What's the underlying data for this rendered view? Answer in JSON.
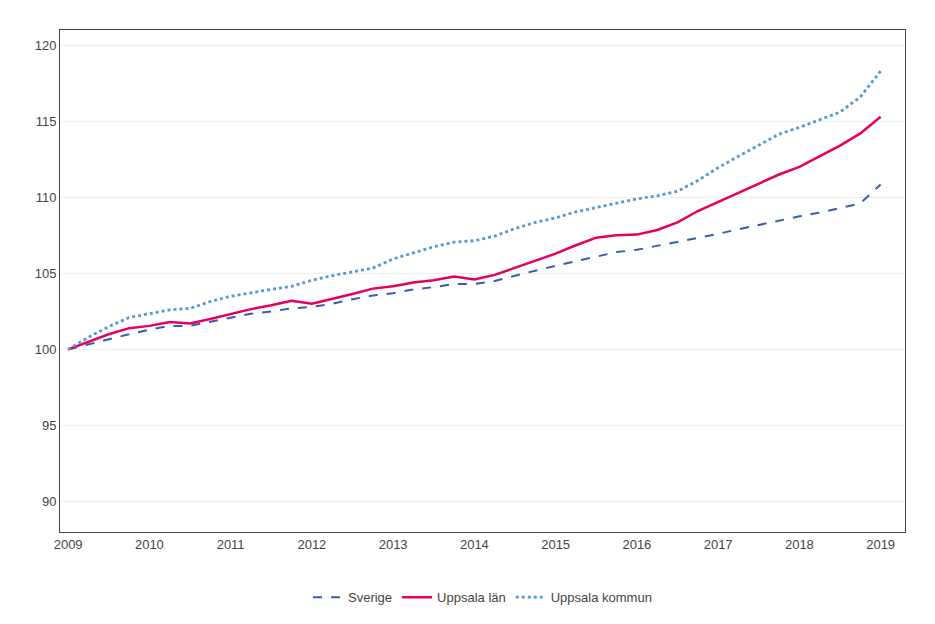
{
  "chart_data": {
    "type": "line",
    "x": [
      2009,
      2009.25,
      2009.5,
      2009.75,
      2010,
      2010.25,
      2010.5,
      2010.75,
      2011,
      2011.25,
      2011.5,
      2011.75,
      2012,
      2012.25,
      2012.5,
      2012.75,
      2013,
      2013.25,
      2013.5,
      2013.75,
      2014,
      2014.25,
      2014.5,
      2014.75,
      2015,
      2015.25,
      2015.5,
      2015.75,
      2016,
      2016.25,
      2016.5,
      2016.75,
      2017,
      2017.25,
      2017.5,
      2017.75,
      2018,
      2018.25,
      2018.5,
      2018.75,
      2019
    ],
    "series": [
      {
        "name": "Sverige",
        "color": "#3a5ab0",
        "line_style": "dashed",
        "values": [
          100.0,
          100.35,
          100.7,
          101.0,
          101.3,
          101.55,
          101.55,
          101.8,
          102.1,
          102.35,
          102.5,
          102.7,
          102.8,
          103.0,
          103.3,
          103.55,
          103.7,
          103.95,
          104.1,
          104.3,
          104.3,
          104.5,
          104.85,
          105.2,
          105.5,
          105.8,
          106.1,
          106.4,
          106.55,
          106.8,
          107.05,
          107.35,
          107.6,
          107.9,
          108.2,
          108.5,
          108.75,
          109.0,
          109.3,
          109.6,
          110.85
        ]
      },
      {
        "name": "Uppsala län",
        "color": "#e6005c",
        "line_style": "solid",
        "values": [
          100.0,
          100.5,
          101.0,
          101.4,
          101.55,
          101.8,
          101.7,
          102.0,
          102.35,
          102.65,
          102.9,
          103.2,
          103.0,
          103.3,
          103.65,
          104.0,
          104.15,
          104.4,
          104.55,
          104.8,
          104.6,
          104.9,
          105.35,
          105.8,
          106.3,
          106.85,
          107.35,
          107.5,
          107.55,
          107.85,
          108.35,
          109.1,
          109.7,
          110.35,
          110.9,
          111.5,
          112.0,
          112.7,
          113.4,
          114.2,
          115.3
        ]
      },
      {
        "name": "Uppsala kommun",
        "color": "#5599d0",
        "line_style": "dotted",
        "values": [
          100.0,
          100.8,
          101.5,
          102.1,
          102.35,
          102.6,
          102.7,
          103.15,
          103.5,
          103.75,
          103.95,
          104.15,
          104.55,
          104.85,
          105.1,
          105.35,
          105.95,
          106.35,
          106.75,
          107.05,
          107.15,
          107.45,
          107.95,
          108.35,
          108.65,
          109.05,
          109.35,
          109.65,
          109.9,
          110.1,
          110.4,
          111.1,
          111.95,
          112.7,
          113.4,
          114.15,
          114.6,
          115.1,
          115.6,
          116.6,
          118.3
        ]
      }
    ],
    "xlim": [
      2008.9,
      2019.3
    ],
    "xticks": [
      2009,
      2010,
      2011,
      2012,
      2013,
      2014,
      2015,
      2016,
      2017,
      2018,
      2019
    ],
    "ylim": [
      88,
      121
    ],
    "yticks": [
      90,
      95,
      100,
      105,
      110,
      115,
      120
    ],
    "grid": "y",
    "legend": "bottom"
  }
}
